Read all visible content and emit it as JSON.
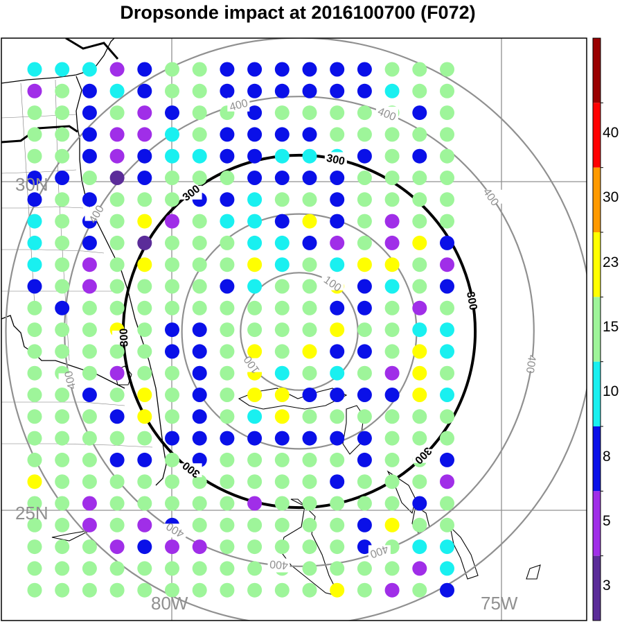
{
  "title": "Dropsonde impact at 2016100700 (F072)",
  "map": {
    "lat_labels": [
      "30N",
      "25N"
    ],
    "lon_labels": [
      "80W",
      "75W"
    ],
    "rings": [
      {
        "value": 100,
        "label": "100",
        "color": "#909090"
      },
      {
        "value": 200,
        "label": "",
        "color": "#909090"
      },
      {
        "value": 300,
        "label": "300",
        "color": "#000000"
      },
      {
        "value": 400,
        "label": "400",
        "color": "#909090"
      },
      {
        "value": 500,
        "label": "",
        "color": "#909090"
      }
    ]
  },
  "colorbar": {
    "labels": [
      "3",
      "5",
      "8",
      "10",
      "15",
      "23",
      "30",
      "40"
    ],
    "colors": [
      "#5b2c99",
      "#a02ee8",
      "#0a10e8",
      "#19f0f0",
      "#9ef59a",
      "#ffff00",
      "#ff9a00",
      "#ff0000",
      "#9a0000"
    ]
  },
  "grid_codes": [
    "4443 1221 6666 1222",
    "3214 6226 6661 1822",
    "2212 3122 1222 2212",
    "2213 3421 1112 2222",
    "2213 1441 1444 1212",
    "1127 1222 1116 2222",
    "1212 2211 4221 2222",
    "4212 5324 4651 2322",
    "4212 7222 4413 2351",
    "4232 5222 5424 5523",
    "1232 2221 4225 1421",
    "2122 2222 2221 1232",
    "2225 2112 2225 2244",
    "2222 2112 5256 1254",
    "2223 2212 5424 2352",
    "2212 5212 5566 6654",
    "2221 5212 4522 2222",
    "2222 2111 6666 1222",
    "2221 1212 2222 6221",
    "5222 2222 2221 2223",
    "2232 2222 3222 2212",
    "2232 3122 2222 6522",
    "2223 6332 2222 1244",
    "2222 2222 2222 2234",
    "2222 2222 2225 2321"
  ]
}
